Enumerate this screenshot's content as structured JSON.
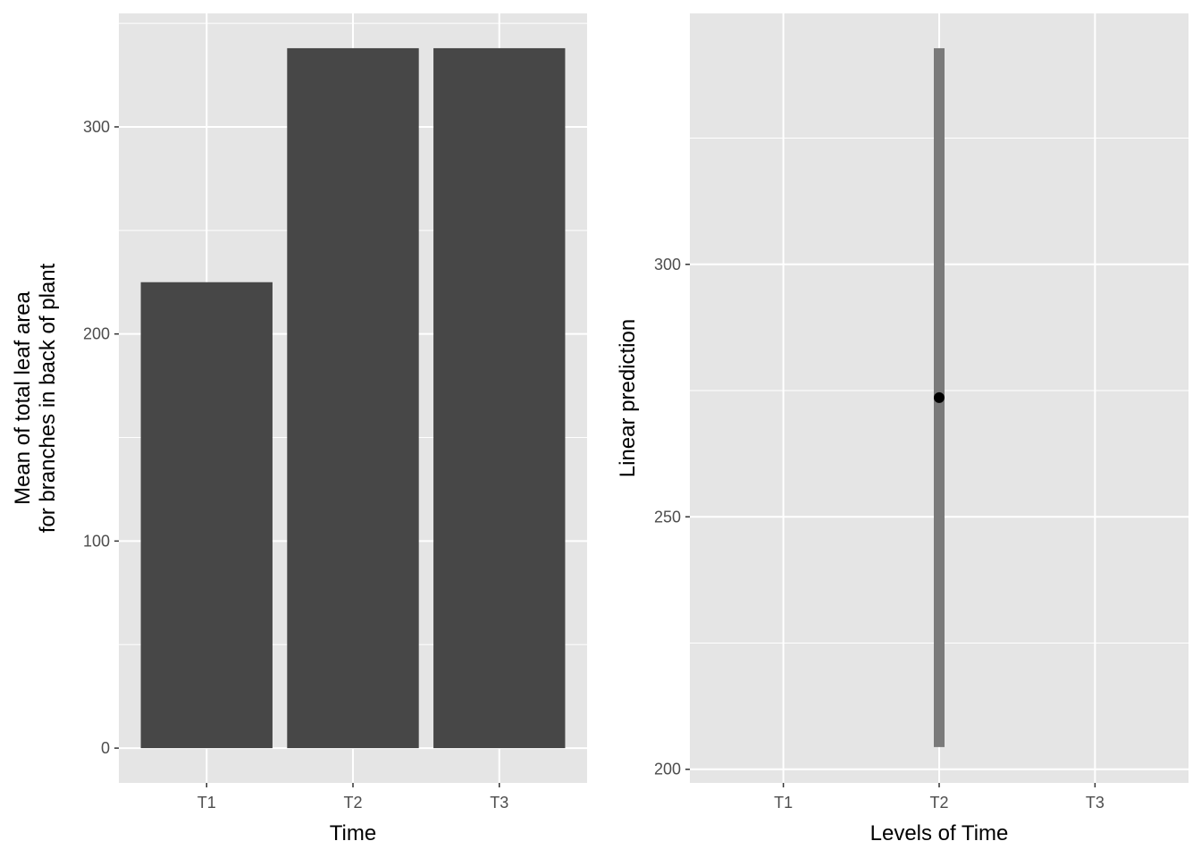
{
  "chart_data": [
    {
      "type": "bar",
      "categories": [
        "T1",
        "T2",
        "T3"
      ],
      "values": [
        225,
        338,
        338
      ],
      "xlabel": "Time",
      "ylabel": [
        "Mean of total leaf area",
        "for branches in back of plant"
      ],
      "ylim": [
        -16.8,
        354.8
      ],
      "yticks": [
        0,
        100,
        200,
        300
      ],
      "grid": true,
      "colors": {
        "bar": "#474747",
        "panel": "#e5e5e5",
        "grid": "#ffffff"
      }
    },
    {
      "type": "pointrange",
      "categories": [
        "T1",
        "T2",
        "T3"
      ],
      "points": [
        {
          "x": "T2",
          "y": 273.6,
          "lower": 204.4,
          "upper": 342.8
        }
      ],
      "xlabel": "Levels of Time",
      "ylabel": "Linear prediction",
      "ylim": [
        197.3,
        349.7
      ],
      "yticks": [
        200,
        250,
        300
      ],
      "grid": true,
      "colors": {
        "interval": "#7a7a7a",
        "point": "#000000",
        "panel": "#e5e5e5",
        "grid": "#ffffff"
      }
    }
  ]
}
